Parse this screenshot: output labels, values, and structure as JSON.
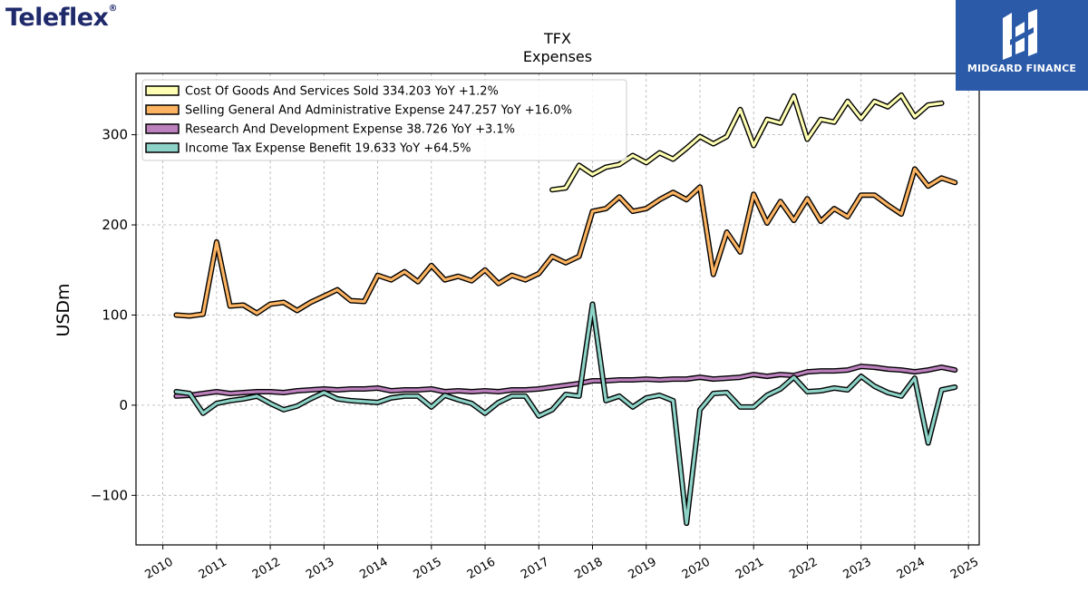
{
  "brand": {
    "logo_text": "Teleflex",
    "badge_text": "MIDGARD FINANCE",
    "badge_color": "#2a5aa8",
    "logo_color": "#1f2a6b"
  },
  "chart_data": {
    "type": "line",
    "title": "TFX",
    "subtitle": "Expenses",
    "ylabel": "USDm",
    "xlabel": "",
    "xlim": [
      2009.5,
      2025.2
    ],
    "ylim": [
      -155,
      368
    ],
    "xticks": [
      2010,
      2011,
      2012,
      2013,
      2014,
      2015,
      2016,
      2017,
      2018,
      2019,
      2020,
      2021,
      2022,
      2023,
      2024,
      2025
    ],
    "yticks": [
      -100,
      0,
      100,
      200,
      300
    ],
    "ytick_labels": [
      "−100",
      "0",
      "100",
      "200",
      "300"
    ],
    "grid": true,
    "legend_position": "top-left",
    "series": [
      {
        "name": "Cost Of Goods And Services Sold",
        "legend": "Cost Of Goods And Services Sold  334.203 YoY +1.2%",
        "color": "#ffffb3",
        "points": [
          [
            2017.25,
            239
          ],
          [
            2017.5,
            241
          ],
          [
            2017.75,
            266
          ],
          [
            2018.0,
            256
          ],
          [
            2018.25,
            264
          ],
          [
            2018.5,
            267
          ],
          [
            2018.75,
            277
          ],
          [
            2019.0,
            269
          ],
          [
            2019.25,
            280
          ],
          [
            2019.5,
            273
          ],
          [
            2019.75,
            285
          ],
          [
            2020.0,
            298
          ],
          [
            2020.25,
            290
          ],
          [
            2020.5,
            298
          ],
          [
            2020.75,
            328
          ],
          [
            2021.0,
            288
          ],
          [
            2021.25,
            317
          ],
          [
            2021.5,
            313
          ],
          [
            2021.75,
            343
          ],
          [
            2022.0,
            295
          ],
          [
            2022.25,
            317
          ],
          [
            2022.5,
            314
          ],
          [
            2022.75,
            337
          ],
          [
            2023.0,
            318
          ],
          [
            2023.25,
            337
          ],
          [
            2023.5,
            331
          ],
          [
            2023.75,
            344
          ],
          [
            2024.0,
            320
          ],
          [
            2024.25,
            333
          ],
          [
            2024.5,
            335
          ]
        ]
      },
      {
        "name": "Selling General And Administrative Expense",
        "legend": "Selling General And Administrative Expense  247.257 YoY +16.0%",
        "color": "#fdb462",
        "points": [
          [
            2010.25,
            100
          ],
          [
            2010.5,
            99
          ],
          [
            2010.75,
            101
          ],
          [
            2011.0,
            181
          ],
          [
            2011.25,
            110
          ],
          [
            2011.5,
            111
          ],
          [
            2011.75,
            102
          ],
          [
            2012.0,
            112
          ],
          [
            2012.25,
            114
          ],
          [
            2012.5,
            105
          ],
          [
            2012.75,
            114
          ],
          [
            2013.0,
            121
          ],
          [
            2013.25,
            128
          ],
          [
            2013.5,
            116
          ],
          [
            2013.75,
            115
          ],
          [
            2014.0,
            144
          ],
          [
            2014.25,
            139
          ],
          [
            2014.5,
            148
          ],
          [
            2014.75,
            137
          ],
          [
            2015.0,
            155
          ],
          [
            2015.25,
            139
          ],
          [
            2015.5,
            143
          ],
          [
            2015.75,
            138
          ],
          [
            2016.0,
            150
          ],
          [
            2016.25,
            135
          ],
          [
            2016.5,
            144
          ],
          [
            2016.75,
            139
          ],
          [
            2017.0,
            146
          ],
          [
            2017.25,
            165
          ],
          [
            2017.5,
            158
          ],
          [
            2017.75,
            165
          ],
          [
            2018.0,
            215
          ],
          [
            2018.25,
            218
          ],
          [
            2018.5,
            231
          ],
          [
            2018.75,
            215
          ],
          [
            2019.0,
            218
          ],
          [
            2019.25,
            228
          ],
          [
            2019.5,
            236
          ],
          [
            2019.75,
            228
          ],
          [
            2020.0,
            242
          ],
          [
            2020.25,
            145
          ],
          [
            2020.5,
            192
          ],
          [
            2020.75,
            170
          ],
          [
            2021.0,
            234
          ],
          [
            2021.25,
            202
          ],
          [
            2021.5,
            226
          ],
          [
            2021.75,
            205
          ],
          [
            2022.0,
            229
          ],
          [
            2022.25,
            204
          ],
          [
            2022.5,
            218
          ],
          [
            2022.75,
            209
          ],
          [
            2023.0,
            233
          ],
          [
            2023.25,
            233
          ],
          [
            2023.5,
            222
          ],
          [
            2023.75,
            212
          ],
          [
            2024.0,
            262
          ],
          [
            2024.25,
            243
          ],
          [
            2024.5,
            252
          ],
          [
            2024.75,
            247
          ]
        ]
      },
      {
        "name": "Research And Development Expense",
        "legend": "Research And Development Expense  38.726 YoY +3.1%",
        "color": "#bc80bd",
        "points": [
          [
            2010.25,
            10
          ],
          [
            2010.5,
            11
          ],
          [
            2010.75,
            13
          ],
          [
            2011.0,
            15
          ],
          [
            2011.25,
            13
          ],
          [
            2011.5,
            14
          ],
          [
            2011.75,
            15
          ],
          [
            2012.0,
            15
          ],
          [
            2012.25,
            14
          ],
          [
            2012.5,
            16
          ],
          [
            2012.75,
            17
          ],
          [
            2013.0,
            18
          ],
          [
            2013.25,
            17
          ],
          [
            2013.5,
            18
          ],
          [
            2013.75,
            18
          ],
          [
            2014.0,
            19
          ],
          [
            2014.25,
            16
          ],
          [
            2014.5,
            17
          ],
          [
            2014.75,
            17
          ],
          [
            2015.0,
            18
          ],
          [
            2015.25,
            15
          ],
          [
            2015.5,
            16
          ],
          [
            2015.75,
            15
          ],
          [
            2016.0,
            16
          ],
          [
            2016.25,
            15
          ],
          [
            2016.5,
            17
          ],
          [
            2016.75,
            17
          ],
          [
            2017.0,
            18
          ],
          [
            2017.25,
            20
          ],
          [
            2017.5,
            22
          ],
          [
            2017.75,
            24
          ],
          [
            2018.0,
            27
          ],
          [
            2018.25,
            27
          ],
          [
            2018.5,
            28
          ],
          [
            2018.75,
            28
          ],
          [
            2019.0,
            29
          ],
          [
            2019.25,
            28
          ],
          [
            2019.5,
            29
          ],
          [
            2019.75,
            29
          ],
          [
            2020.0,
            31
          ],
          [
            2020.25,
            29
          ],
          [
            2020.5,
            30
          ],
          [
            2020.75,
            31
          ],
          [
            2021.0,
            34
          ],
          [
            2021.25,
            32
          ],
          [
            2021.5,
            34
          ],
          [
            2021.75,
            33
          ],
          [
            2022.0,
            37
          ],
          [
            2022.25,
            38
          ],
          [
            2022.5,
            38
          ],
          [
            2022.75,
            39
          ],
          [
            2023.0,
            43
          ],
          [
            2023.25,
            42
          ],
          [
            2023.5,
            40
          ],
          [
            2023.75,
            39
          ],
          [
            2024.0,
            37
          ],
          [
            2024.25,
            39
          ],
          [
            2024.5,
            42
          ],
          [
            2024.75,
            39
          ]
        ]
      },
      {
        "name": "Income Tax Expense Benefit",
        "legend": "Income Tax Expense Benefit  19.633 YoY +64.5%",
        "color": "#8dd3c7",
        "points": [
          [
            2010.25,
            15
          ],
          [
            2010.5,
            13
          ],
          [
            2010.75,
            -9
          ],
          [
            2011.0,
            2
          ],
          [
            2011.25,
            5
          ],
          [
            2011.5,
            7
          ],
          [
            2011.75,
            10
          ],
          [
            2012.0,
            2
          ],
          [
            2012.25,
            -5
          ],
          [
            2012.5,
            -1
          ],
          [
            2012.75,
            7
          ],
          [
            2013.0,
            14
          ],
          [
            2013.25,
            7
          ],
          [
            2013.5,
            5
          ],
          [
            2013.75,
            4
          ],
          [
            2014.0,
            3
          ],
          [
            2014.25,
            8
          ],
          [
            2014.5,
            10
          ],
          [
            2014.75,
            10
          ],
          [
            2015.0,
            -2
          ],
          [
            2015.25,
            11
          ],
          [
            2015.5,
            6
          ],
          [
            2015.75,
            2
          ],
          [
            2016.0,
            -9
          ],
          [
            2016.25,
            3
          ],
          [
            2016.5,
            10
          ],
          [
            2016.75,
            10
          ],
          [
            2017.0,
            -12
          ],
          [
            2017.25,
            -5
          ],
          [
            2017.5,
            12
          ],
          [
            2017.75,
            10
          ],
          [
            2018.0,
            112
          ],
          [
            2018.25,
            5
          ],
          [
            2018.5,
            10
          ],
          [
            2018.75,
            -2
          ],
          [
            2019.0,
            8
          ],
          [
            2019.25,
            11
          ],
          [
            2019.5,
            5
          ],
          [
            2019.75,
            -131
          ],
          [
            2020.0,
            -5
          ],
          [
            2020.25,
            13
          ],
          [
            2020.5,
            14
          ],
          [
            2020.75,
            -2
          ],
          [
            2021.0,
            -2
          ],
          [
            2021.25,
            11
          ],
          [
            2021.5,
            18
          ],
          [
            2021.75,
            31
          ],
          [
            2022.0,
            15
          ],
          [
            2022.25,
            16
          ],
          [
            2022.5,
            19
          ],
          [
            2022.75,
            17
          ],
          [
            2023.0,
            32
          ],
          [
            2023.25,
            21
          ],
          [
            2023.5,
            14
          ],
          [
            2023.75,
            10
          ],
          [
            2024.0,
            30
          ],
          [
            2024.25,
            -42
          ],
          [
            2024.5,
            17
          ],
          [
            2024.75,
            20
          ]
        ]
      }
    ]
  }
}
